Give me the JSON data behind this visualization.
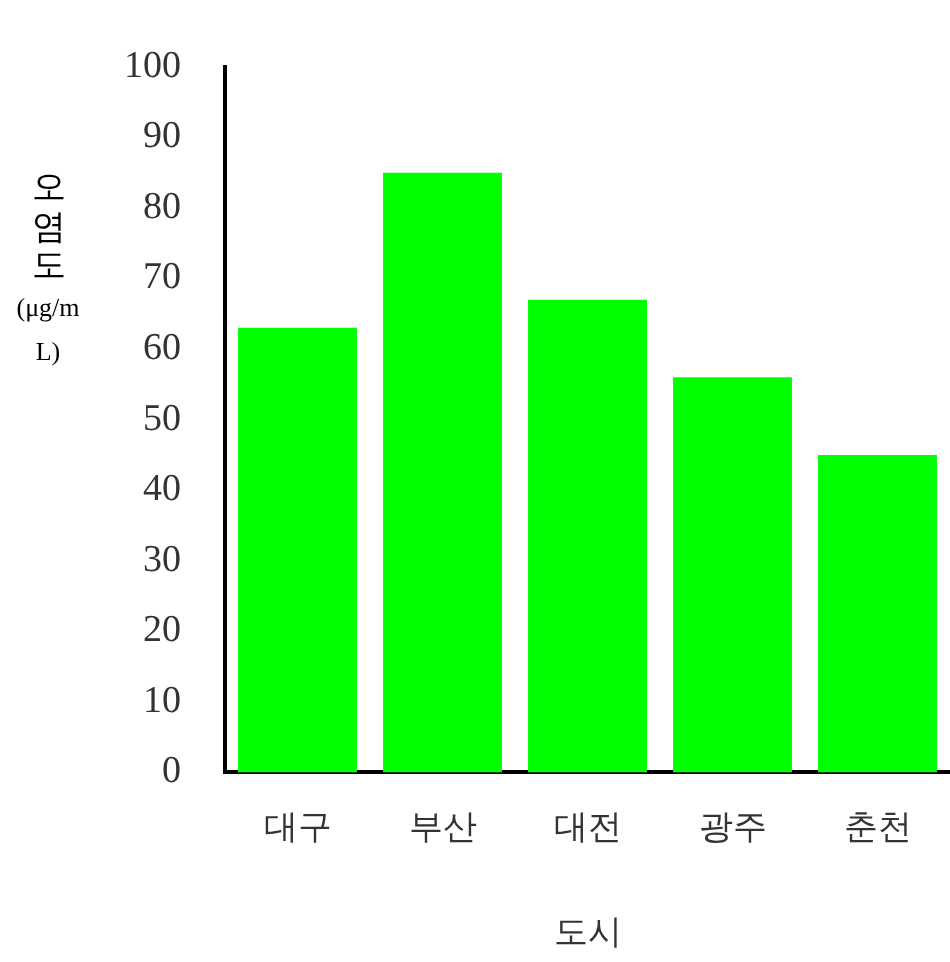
{
  "chart_data": {
    "type": "bar",
    "xlabel": "도시",
    "ylabel": "오염도(μg/mL)",
    "categories": [
      "대구",
      "부산",
      "대전",
      "광주",
      "춘천"
    ],
    "values": [
      63,
      85,
      67,
      56,
      45
    ],
    "color": "#00ff00",
    "ylim": [
      0,
      100
    ],
    "yticks": [
      0,
      10,
      20,
      30,
      40,
      50,
      60,
      70,
      80,
      90,
      100
    ],
    "grid": false,
    "legend": false
  }
}
